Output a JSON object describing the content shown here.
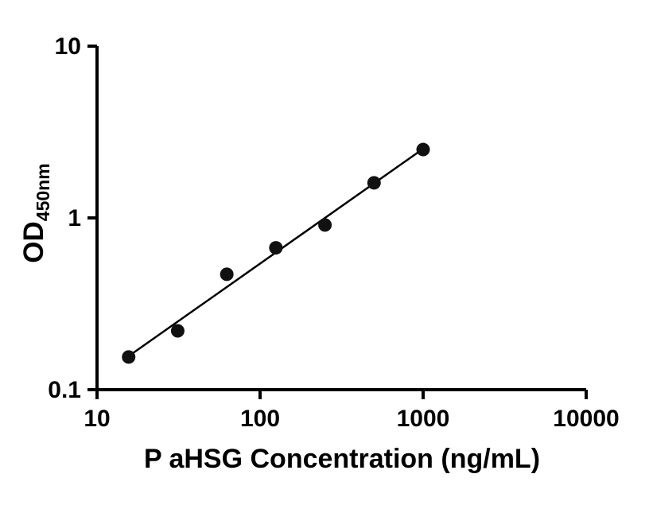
{
  "figure": {
    "background": "#ffffff"
  },
  "chart_data": {
    "type": "scatter",
    "title": "",
    "xlabel": "P aHSG Concentration (ng/mL)",
    "ylabel_main": "OD",
    "ylabel_sub": "450nm",
    "x_scale": "log10",
    "y_scale": "log10",
    "xlim": [
      10,
      10000
    ],
    "ylim": [
      0.1,
      10
    ],
    "grid": false,
    "legend": null,
    "x_ticks": [
      {
        "value": 10,
        "label": "10"
      },
      {
        "value": 100,
        "label": "100"
      },
      {
        "value": 1000,
        "label": "1000"
      },
      {
        "value": 10000,
        "label": "10000"
      }
    ],
    "y_ticks": [
      {
        "value": 0.1,
        "label": "0.1"
      },
      {
        "value": 1,
        "label": "1"
      },
      {
        "value": 10,
        "label": "10"
      }
    ],
    "points": [
      {
        "x": 15.63,
        "y": 0.155
      },
      {
        "x": 31.25,
        "y": 0.22
      },
      {
        "x": 62.5,
        "y": 0.47
      },
      {
        "x": 125,
        "y": 0.67
      },
      {
        "x": 250,
        "y": 0.91
      },
      {
        "x": 500,
        "y": 1.6
      },
      {
        "x": 1000,
        "y": 2.5
      }
    ],
    "trend_line": {
      "show": true,
      "fit": "linear-loglog"
    },
    "colors": {
      "marker": "#111111",
      "line": "#000000",
      "axis": "#000000",
      "text": "#000000"
    }
  }
}
